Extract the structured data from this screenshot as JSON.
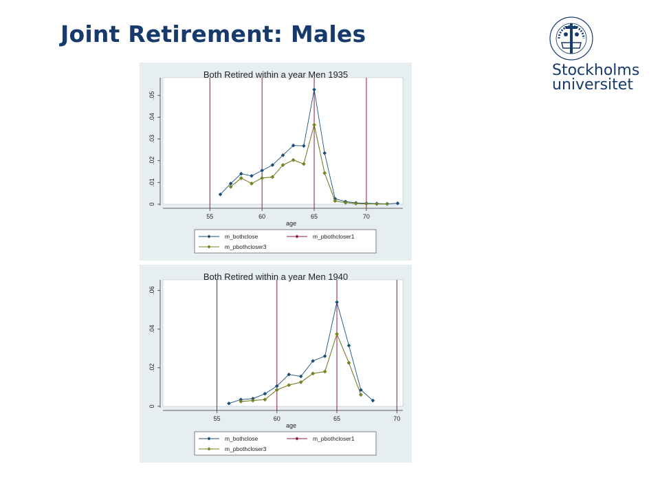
{
  "slide": {
    "title": "Joint Retirement: Males"
  },
  "logo": {
    "line1": "Stockholms",
    "line2": "universitet",
    "seal_text": "UNIVERSITET · STOCKHOLMS",
    "color": "#153a6b"
  },
  "colors": {
    "background_panel": "#e7eef1",
    "vline": "#8b1a3c",
    "series_blue": "#1a4e7a",
    "series_red": "#8b1a3c",
    "series_green": "#6e8a1f"
  },
  "chart_data": [
    {
      "type": "line",
      "title": "Both Retired within a year Men 1935",
      "xlabel": "age",
      "ylabel": "",
      "xlim": [
        50.5,
        73.5
      ],
      "ylim": [
        0,
        0.055
      ],
      "xticks": [
        55,
        60,
        65,
        70
      ],
      "xtick_labels": [
        "55",
        "60",
        "65",
        "70"
      ],
      "yticks": [
        0,
        0.01,
        0.02,
        0.03,
        0.04,
        0.05
      ],
      "ytick_labels": [
        "0",
        ".01",
        ".02",
        ".03",
        ".04",
        ".05"
      ],
      "vlines": [
        55,
        60,
        65,
        70
      ],
      "grid": false,
      "legend_position": "bottom",
      "series": [
        {
          "name": "m_bothclose",
          "color": "#1a4e7a",
          "x": [
            56,
            57,
            58,
            59,
            60,
            61,
            62,
            63,
            64,
            65,
            66,
            67,
            68,
            69,
            70,
            71,
            72,
            73
          ],
          "y": [
            0.0045,
            0.0095,
            0.014,
            0.013,
            0.0155,
            0.018,
            0.0225,
            0.027,
            0.0268,
            0.0527,
            0.0235,
            0.0025,
            0.0012,
            0.0006,
            0.0004,
            0.0003,
            0.0002,
            0.0004
          ]
        },
        {
          "name": "m_pbothcloser1",
          "color": "#8b1a3c",
          "x": [
            57,
            58,
            59,
            60,
            61,
            62,
            63,
            64,
            65,
            66,
            67,
            68,
            69,
            70,
            71,
            72
          ],
          "y": [
            0.008,
            0.012,
            0.0095,
            0.012,
            0.0125,
            0.018,
            0.0203,
            0.0185,
            0.0365,
            0.0143,
            0.0015,
            0.0007,
            0.0003,
            0.0002,
            0.0001,
            0.0001
          ]
        },
        {
          "name": "m_pbothcloser3",
          "color": "#6e8a1f",
          "x": [
            57,
            58,
            59,
            60,
            61,
            62,
            63,
            64,
            65,
            66,
            67,
            68,
            69,
            70,
            71,
            72
          ],
          "y": [
            0.008,
            0.012,
            0.0095,
            0.012,
            0.0125,
            0.018,
            0.0203,
            0.0185,
            0.0365,
            0.0143,
            0.0015,
            0.0007,
            0.0003,
            0.0002,
            0.0001,
            0.0001
          ]
        }
      ]
    },
    {
      "type": "line",
      "title": "Both Retired within a year Men 1940",
      "xlabel": "age",
      "ylabel": "",
      "xlim": [
        50.5,
        70.5
      ],
      "ylim": [
        0,
        0.062
      ],
      "xticks": [
        55,
        60,
        65,
        70
      ],
      "xtick_labels": [
        "55",
        "60",
        "65",
        "70"
      ],
      "yticks": [
        0,
        0.02,
        0.04,
        0.06
      ],
      "ytick_labels": [
        "0",
        ".02",
        ".04",
        ".06"
      ],
      "vlines": [
        55,
        60,
        65,
        70
      ],
      "grid": false,
      "legend_position": "bottom",
      "series": [
        {
          "name": "m_bothclose",
          "color": "#1a4e7a",
          "x": [
            56,
            57,
            58,
            59,
            60,
            61,
            62,
            63,
            64,
            65,
            66,
            67,
            68
          ],
          "y": [
            0.0015,
            0.0035,
            0.004,
            0.0065,
            0.0105,
            0.0165,
            0.0155,
            0.0235,
            0.026,
            0.054,
            0.0315,
            0.0085,
            0.003
          ]
        },
        {
          "name": "m_pbothcloser1",
          "color": "#8b1a3c",
          "x": [
            57,
            58,
            59,
            60,
            61,
            62,
            63,
            64,
            65,
            66,
            67
          ],
          "y": [
            0.0025,
            0.003,
            0.0035,
            0.0085,
            0.011,
            0.0125,
            0.017,
            0.018,
            0.0375,
            0.0225,
            0.006
          ]
        },
        {
          "name": "m_pbothcloser3",
          "color": "#6e8a1f",
          "x": [
            57,
            58,
            59,
            60,
            61,
            62,
            63,
            64,
            65,
            66,
            67
          ],
          "y": [
            0.0025,
            0.003,
            0.0035,
            0.0085,
            0.011,
            0.0125,
            0.017,
            0.018,
            0.0375,
            0.0225,
            0.006
          ]
        }
      ]
    }
  ]
}
